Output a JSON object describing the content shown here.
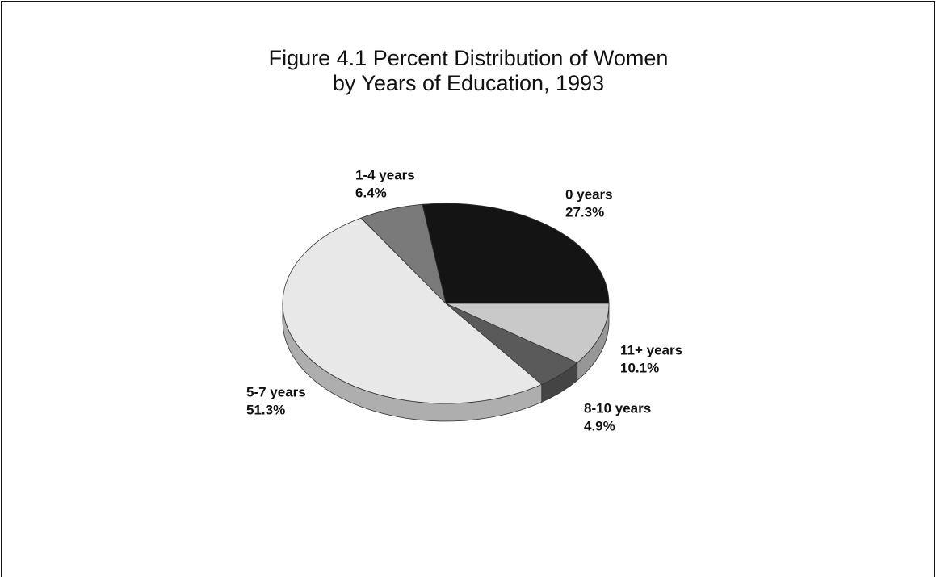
{
  "chart_data": {
    "type": "pie",
    "title": [
      "Figure 4.1 Percent Distribution of Women",
      "by Years of Education, 1993"
    ],
    "categories": [
      "0 years",
      "11+ years",
      "8-10 years",
      "5-7 years",
      "1-4 years"
    ],
    "values": [
      27.3,
      10.1,
      4.9,
      51.3,
      6.4
    ],
    "value_labels": [
      "27.3%",
      "10.1%",
      "4.9%",
      "51.3%",
      "6.4%"
    ],
    "colors": [
      "#141414",
      "#c9c9c9",
      "#5a5a5a",
      "#e8e8e8",
      "#7a7a7a"
    ]
  }
}
